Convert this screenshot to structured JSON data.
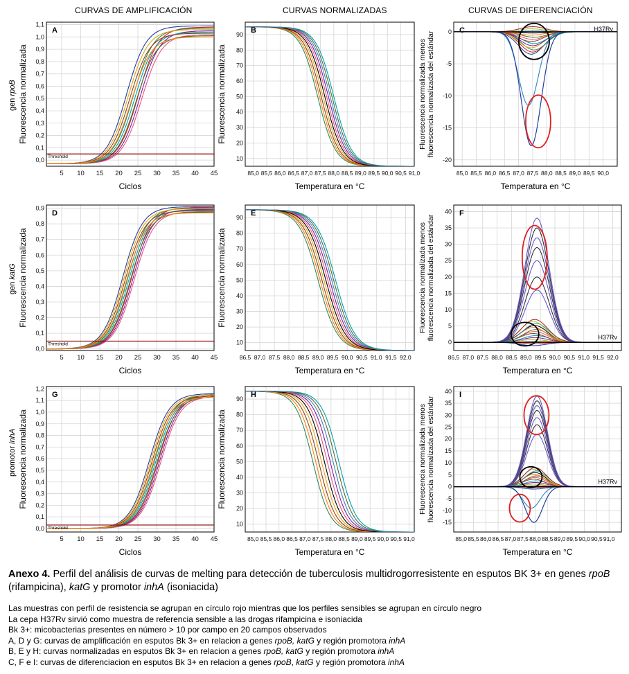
{
  "column_titles": [
    "CURVAS DE AMPLIFICACIÓN",
    "CURVAS NORMALIZADAS",
    "CURVAS DE DIFERENCIACIÓN"
  ],
  "row_labels": [
    {
      "prefix": "gen ",
      "gene": "rpoB"
    },
    {
      "prefix": "gen ",
      "gene": "katG"
    },
    {
      "prefix": "promotor ",
      "gene": "inhA"
    }
  ],
  "chart_data": [
    {
      "panel": "A",
      "type": "line",
      "xlabel": "Ciclos",
      "ylabel": "Fluorescencia normalizada",
      "xlim": [
        1,
        45
      ],
      "ylim": [
        -0.05,
        1.12
      ],
      "xticks": [
        5,
        10,
        15,
        20,
        25,
        30,
        35,
        40,
        45
      ],
      "yticks": [
        "0,0",
        "0,1",
        "0,2",
        "0,3",
        "0,4",
        "0,5",
        "0,6",
        "0,7",
        "0,8",
        "0,9",
        "1,0",
        "1,1"
      ],
      "ytick_values": [
        0,
        0.1,
        0.2,
        0.3,
        0.4,
        0.5,
        0.6,
        0.7,
        0.8,
        0.9,
        1.0,
        1.1
      ],
      "threshold": 0.05,
      "threshold_label": "Threshold",
      "grid": true,
      "series_summary": {
        "curve_count": 10,
        "midpoint_cycle_range": [
          22,
          26
        ],
        "plateau_range": [
          1.0,
          1.09
        ],
        "baseline": -0.03
      }
    },
    {
      "panel": "B",
      "type": "line",
      "xlabel": "Temperatura en °C",
      "ylabel": "Fluorescencia normalizada",
      "xlim": [
        84.7,
        91.0
      ],
      "ylim": [
        5,
        98
      ],
      "xticks": [
        "85,0",
        "85,5",
        "86,0",
        "86,5",
        "87,0",
        "87,5",
        "88,0",
        "88,5",
        "89,0",
        "89,5",
        "90,0",
        "90,5",
        "91,0"
      ],
      "xtick_values": [
        85,
        85.5,
        86,
        86.5,
        87,
        87.5,
        88,
        88.5,
        89,
        89.5,
        90,
        90.5,
        91
      ],
      "yticks": [
        "10",
        "20",
        "30",
        "40",
        "50",
        "60",
        "70",
        "80",
        "90"
      ],
      "ytick_values": [
        10,
        20,
        30,
        40,
        50,
        60,
        70,
        80,
        90
      ],
      "grid": true,
      "series_summary": {
        "curve_count": 10,
        "midpoint_temp_range": [
          87.4,
          88.0
        ],
        "start": 95,
        "end": 5
      }
    },
    {
      "panel": "C",
      "type": "line",
      "xlabel": "Temperatura en °C",
      "ylabel": "Fluorescencia normalizada menos fluorescencia normalizada del estándar",
      "xlim": [
        84.7,
        90.5
      ],
      "ylim": [
        -21,
        1.5
      ],
      "xticks": [
        "85,0",
        "85,5",
        "86,0",
        "86,5",
        "87,0",
        "87,5",
        "88,0",
        "88,5",
        "89,0",
        "89,5",
        "90,0"
      ],
      "xtick_values": [
        85,
        85.5,
        86,
        86.5,
        87,
        87.5,
        88,
        88.5,
        89,
        89.5,
        90
      ],
      "yticks": [
        "0",
        "-5",
        "-10",
        "-15",
        "-20"
      ],
      "ytick_values": [
        0,
        -5,
        -10,
        -15,
        -20
      ],
      "grid": true,
      "reference_label": "H37Rv",
      "series_summary": {
        "resistant_dips": [
          -11.5,
          -17.8
        ],
        "sensitive_range": [
          -3.5,
          0.8
        ],
        "peak_temp": 87.5
      }
    },
    {
      "panel": "D",
      "type": "line",
      "xlabel": "Ciclos",
      "ylabel": "Fluorescencia normalizada",
      "xlim": [
        1,
        45
      ],
      "ylim": [
        -0.01,
        0.92
      ],
      "xticks": [
        5,
        10,
        15,
        20,
        25,
        30,
        35,
        40,
        45
      ],
      "yticks": [
        "0,0",
        "0,1",
        "0,2",
        "0,3",
        "0,4",
        "0,5",
        "0,6",
        "0,7",
        "0,8",
        "0,9"
      ],
      "ytick_values": [
        0,
        0.1,
        0.2,
        0.3,
        0.4,
        0.5,
        0.6,
        0.7,
        0.8,
        0.9
      ],
      "threshold": 0.05,
      "threshold_label": "Threshold",
      "grid": true,
      "series_summary": {
        "curve_count": 10,
        "midpoint_cycle_range": [
          21,
          24
        ],
        "plateau_range": [
          0.87,
          0.91
        ],
        "baseline": 0.0
      }
    },
    {
      "panel": "E",
      "type": "line",
      "xlabel": "Temperatura en °C",
      "ylabel": "Fluorescencia normalizada",
      "xlim": [
        86.5,
        92.3
      ],
      "ylim": [
        5,
        98
      ],
      "xticks": [
        "86,5",
        "87,0",
        "87,5",
        "88,0",
        "88,5",
        "89,0",
        "89,5",
        "90,0",
        "90,5",
        "91,0",
        "91,5",
        "92,0"
      ],
      "xtick_values": [
        86.5,
        87,
        87.5,
        88,
        88.5,
        89,
        89.5,
        90,
        90.5,
        91,
        91.5,
        92
      ],
      "yticks": [
        "10",
        "20",
        "30",
        "40",
        "50",
        "60",
        "70",
        "80",
        "90"
      ],
      "ytick_values": [
        10,
        20,
        30,
        40,
        50,
        60,
        70,
        80,
        90
      ],
      "grid": true,
      "series_summary": {
        "curve_count": 10,
        "midpoint_temp_range": [
          89.0,
          89.6
        ],
        "start": 95,
        "end": 5
      }
    },
    {
      "panel": "F",
      "type": "line",
      "xlabel": "Temperatura en °C",
      "ylabel": "Fluorescencia normalizada menos fluorescencia normalizada del estándar",
      "xlim": [
        86.5,
        92.3
      ],
      "ylim": [
        -2.5,
        42
      ],
      "xticks": [
        "86,5",
        "87,0",
        "87,5",
        "88,0",
        "88,5",
        "89,0",
        "89,5",
        "90,0",
        "90,5",
        "91,0",
        "91,5",
        "92,0"
      ],
      "xtick_values": [
        86.5,
        87,
        87.5,
        88,
        88.5,
        89,
        89.5,
        90,
        90.5,
        91,
        91.5,
        92
      ],
      "yticks": [
        "0",
        "5",
        "10",
        "15",
        "20",
        "25",
        "30",
        "35",
        "40"
      ],
      "ytick_values": [
        0,
        5,
        10,
        15,
        20,
        25,
        30,
        35,
        40
      ],
      "grid": true,
      "reference_label": "H37Rv",
      "series_summary": {
        "resistant_peaks": [
          16,
          20,
          25,
          29,
          32,
          35,
          38
        ],
        "sensitive_range": [
          -1,
          7
        ],
        "peak_temp": 89.3
      }
    },
    {
      "panel": "G",
      "type": "line",
      "xlabel": "Ciclos",
      "ylabel": "Fluorescencia normalizada",
      "xlim": [
        1,
        45
      ],
      "ylim": [
        -0.03,
        1.22
      ],
      "xticks": [
        5,
        10,
        15,
        20,
        25,
        30,
        35,
        40,
        45
      ],
      "yticks": [
        "0,0",
        "0,1",
        "0,2",
        "0,3",
        "0,4",
        "0,5",
        "0,6",
        "0,7",
        "0,8",
        "0,9",
        "1,0",
        "1,1",
        "1,2"
      ],
      "ytick_values": [
        0,
        0.1,
        0.2,
        0.3,
        0.4,
        0.5,
        0.6,
        0.7,
        0.8,
        0.9,
        1.0,
        1.1,
        1.2
      ],
      "threshold": 0.03,
      "threshold_label": "Threshold",
      "grid": true,
      "series_summary": {
        "curve_count": 10,
        "midpoint_cycle_range": [
          28,
          31
        ],
        "plateau_range": [
          1.13,
          1.16
        ],
        "baseline": 0.0
      }
    },
    {
      "panel": "H",
      "type": "line",
      "xlabel": "Temperatura en °C",
      "ylabel": "Fluorescencia normalizada",
      "xlim": [
        84.7,
        91.2
      ],
      "ylim": [
        5,
        98
      ],
      "xticks": [
        "85,0",
        "85,5",
        "86,0",
        "86,5",
        "87,0",
        "87,5",
        "88,0",
        "88,5",
        "89,0",
        "89,5",
        "90,0",
        "90,5",
        "91,0"
      ],
      "xtick_values": [
        85,
        85.5,
        86,
        86.5,
        87,
        87.5,
        88,
        88.5,
        89,
        89.5,
        90,
        90.5,
        91
      ],
      "yticks": [
        "10",
        "20",
        "30",
        "40",
        "50",
        "60",
        "70",
        "80",
        "90"
      ],
      "ytick_values": [
        10,
        20,
        30,
        40,
        50,
        60,
        70,
        80,
        90
      ],
      "grid": true,
      "series_summary": {
        "curve_count": 10,
        "midpoint_temp_range": [
          87.3,
          88.3
        ],
        "start": 95,
        "end": 5
      }
    },
    {
      "panel": "I",
      "type": "line",
      "xlabel": "Temperatura en °C",
      "ylabel": "Fluorescencia normalizada menos fluorescencia normalizada del estándar",
      "xlim": [
        84.7,
        91.5
      ],
      "ylim": [
        -19,
        42
      ],
      "xticks": [
        "85,0",
        "85,5",
        "86,0",
        "86,5",
        "87,0",
        "87,5",
        "88,0",
        "88,5",
        "89,0",
        "89,5",
        "90,0",
        "90,5",
        "91,0"
      ],
      "xtick_values": [
        85,
        85.5,
        86,
        86.5,
        87,
        87.5,
        88,
        88.5,
        89,
        89.5,
        90,
        90.5,
        91
      ],
      "yticks": [
        "-15",
        "-10",
        "-5",
        "0",
        "5",
        "10",
        "15",
        "20",
        "25",
        "30",
        "35",
        "40"
      ],
      "ytick_values": [
        -15,
        -10,
        -5,
        0,
        5,
        10,
        15,
        20,
        25,
        30,
        35,
        40
      ],
      "grid": true,
      "reference_label": "H37Rv",
      "series_summary": {
        "resistant_peaks": [
          22,
          26,
          29,
          32,
          34,
          36,
          38
        ],
        "resistant_dips": [
          -9,
          -15
        ],
        "sensitive_range": [
          -1,
          8
        ],
        "peak_temp": 88.0
      }
    }
  ],
  "colors": {
    "resistant_circle": "#e02020",
    "sensitive_circle": "#000000",
    "threshold_line": "#8b0000",
    "grid": "#d6d6d6"
  },
  "caption": {
    "label": "Anexo 4.",
    "text_1": " Perfil del análisis de curvas de melting para detección de tuberculosis multidrogorresistente en esputos BK 3+ en genes ",
    "gene_1": "rpoB",
    "text_2": " (rifampicina), ",
    "gene_2": "katG",
    "text_3": " y promotor ",
    "gene_3": "inhA",
    "text_4": " (isoniacida)"
  },
  "notes": {
    "line_1": "Las muestras con perfil de resistencia se agrupan en círculo rojo mientras que los perfiles sensibles se agrupan en círculo negro",
    "line_2": "La cepa H37Rv sirvió como muestra de referencia sensible a las drogas rifampicina e isoniacida",
    "line_3": "Bk 3+: micobacterias presentes en número > 10 por campo en 20 campos observados",
    "line_4_a": "A, D y G: curvas de amplificación en esputos Bk 3+ en relacion a genes ",
    "line_4_b": "rpoB, katG",
    "line_4_c": " y región promotora ",
    "line_4_d": "inhA",
    "line_5_a": "B, E y H: curvas normalizadas en esputos Bk 3+ en relacion a genes ",
    "line_5_b": "rpoB, katG",
    "line_5_c": " y región promotora ",
    "line_5_d": "inhA",
    "line_6_a": "C, F e I: curvas de diferenciacion en esputos Bk 3+ en relacion a genes ",
    "line_6_b": "rpoB",
    "line_6_c": ", ",
    "line_6_d": "katG",
    "line_6_e": " y región promotora ",
    "line_6_f": "inhA"
  }
}
